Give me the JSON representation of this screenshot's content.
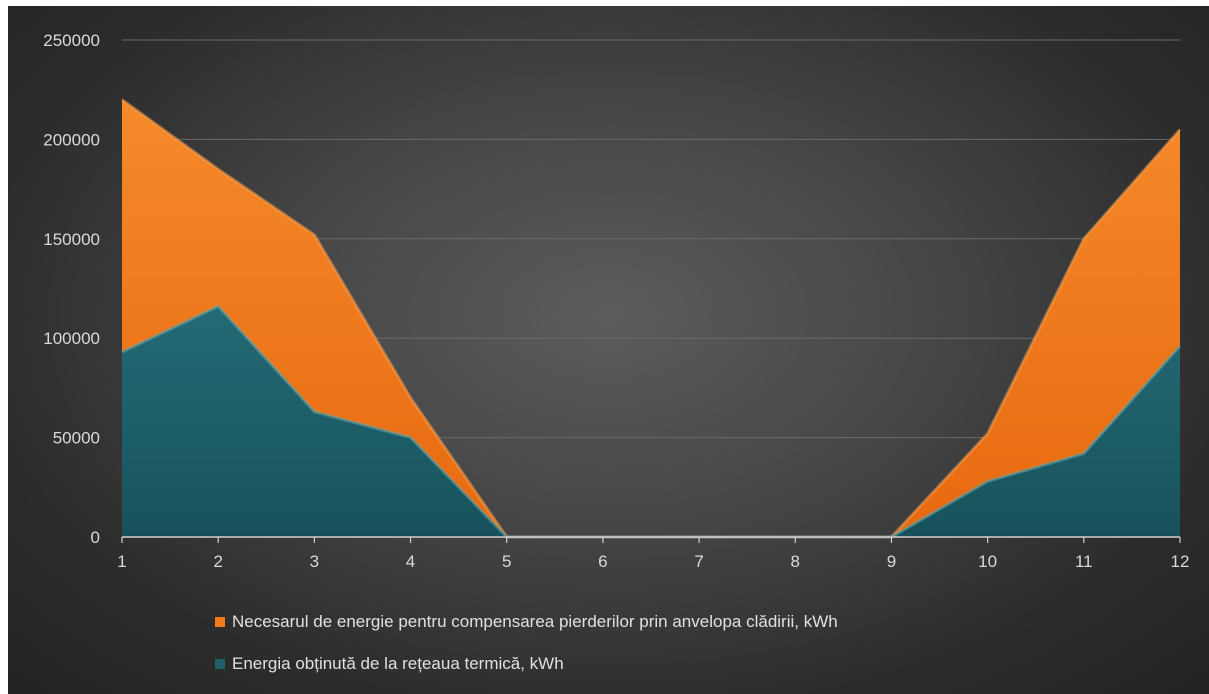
{
  "chart_data": {
    "type": "area",
    "x": [
      1,
      2,
      3,
      4,
      5,
      6,
      7,
      8,
      9,
      10,
      11,
      12
    ],
    "ylim": [
      0,
      250000
    ],
    "yticks": [
      0,
      50000,
      100000,
      150000,
      200000,
      250000
    ],
    "ytick_labels": [
      "0",
      "50000",
      "100000",
      "150000",
      "200000",
      "250000"
    ],
    "xtick_labels": [
      "1",
      "2",
      "3",
      "4",
      "5",
      "6",
      "7",
      "8",
      "9",
      "10",
      "11",
      "12"
    ],
    "grid": true,
    "legend_position": "bottom",
    "series": [
      {
        "name": "Necesarul de energie pentru compensarea pierderilor prin anvelopa clădirii, kWh",
        "color": "#f07a1c",
        "values": [
          220000,
          185000,
          152000,
          70000,
          0,
          0,
          0,
          0,
          0,
          52000,
          150000,
          205000
        ]
      },
      {
        "name": "Energia obținută de la rețeaua termică, kWh",
        "color": "#1f5f6a",
        "values": [
          93000,
          116000,
          63000,
          50000,
          0,
          0,
          0,
          0,
          0,
          28000,
          42000,
          96000
        ]
      }
    ]
  }
}
